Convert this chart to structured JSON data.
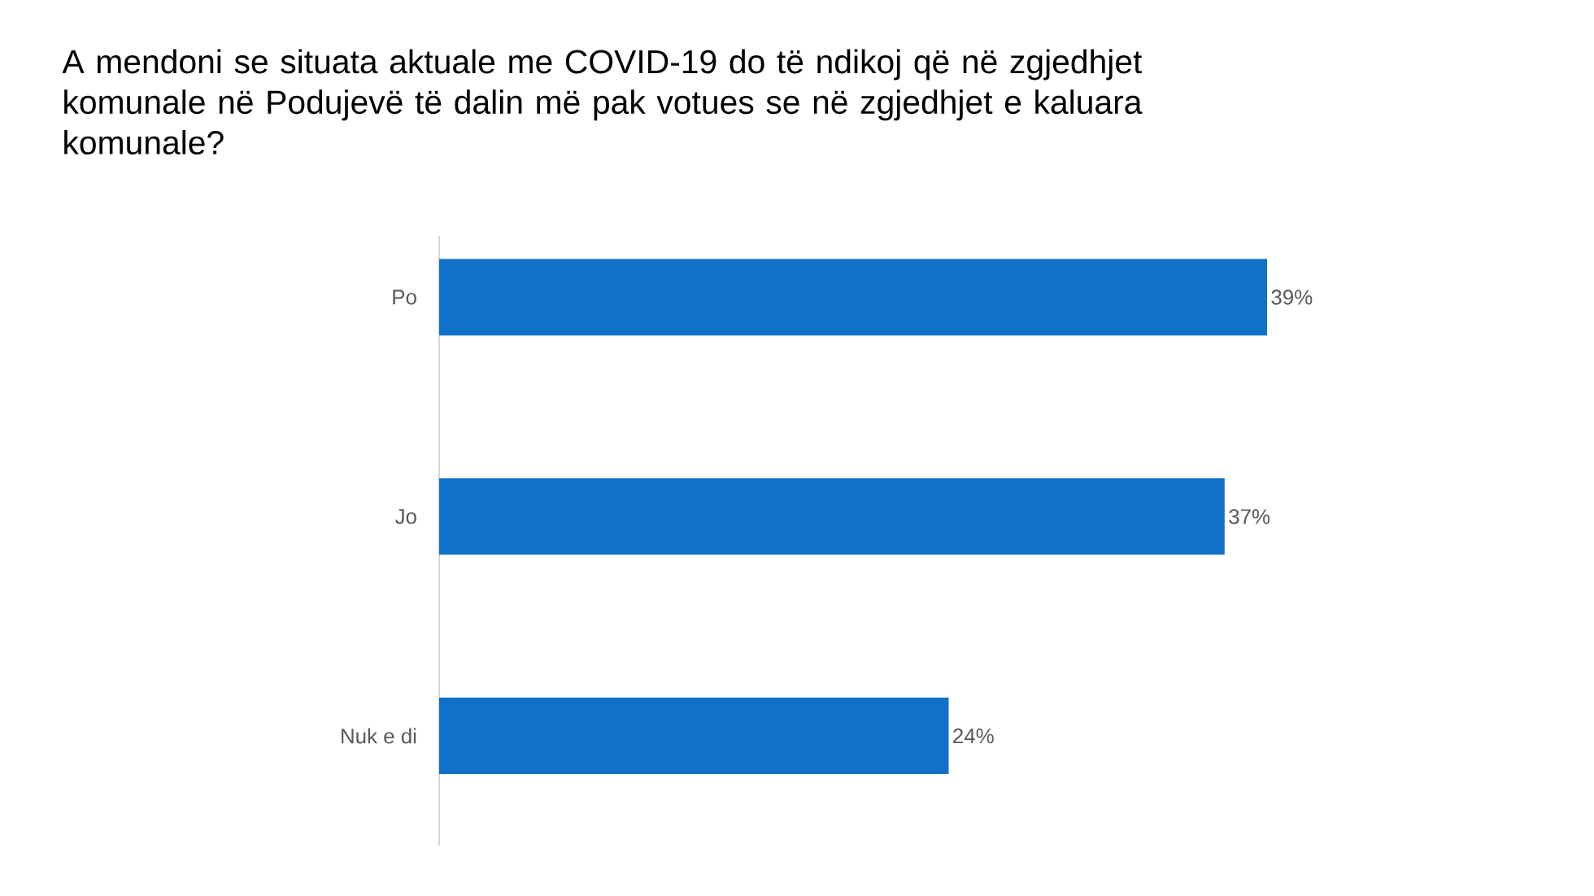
{
  "chart_data": {
    "type": "bar",
    "orientation": "horizontal",
    "title": "A mendoni se situata aktuale me COVID-19 do të ndikoj që në zgjedhjet komunale në Podujevë të dalin më pak votues se në zgjedhjet e kaluara komunale?",
    "categories": [
      "Po",
      "Jo",
      "Nuk e di"
    ],
    "values": [
      39,
      37,
      24
    ],
    "value_labels": [
      "39%",
      "37%",
      "24%"
    ],
    "color": "#1170c8"
  }
}
